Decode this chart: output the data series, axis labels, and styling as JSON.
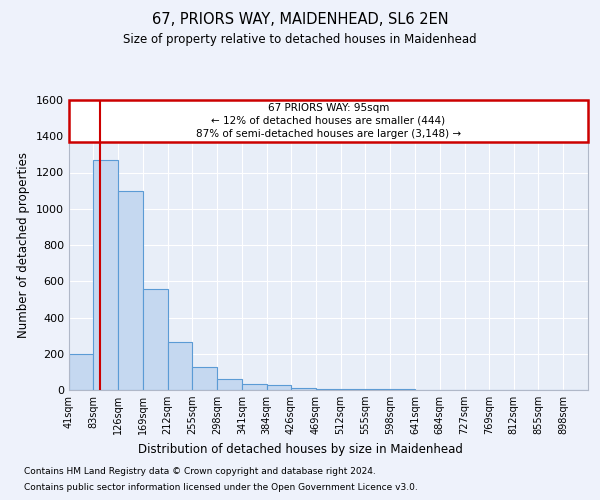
{
  "title1": "67, PRIORS WAY, MAIDENHEAD, SL6 2EN",
  "title2": "Size of property relative to detached houses in Maidenhead",
  "xlabel": "Distribution of detached houses by size in Maidenhead",
  "ylabel": "Number of detached properties",
  "footnote1": "Contains HM Land Registry data © Crown copyright and database right 2024.",
  "footnote2": "Contains public sector information licensed under the Open Government Licence v3.0.",
  "bin_labels": [
    "41sqm",
    "83sqm",
    "126sqm",
    "169sqm",
    "212sqm",
    "255sqm",
    "298sqm",
    "341sqm",
    "384sqm",
    "426sqm",
    "469sqm",
    "512sqm",
    "555sqm",
    "598sqm",
    "641sqm",
    "684sqm",
    "727sqm",
    "769sqm",
    "812sqm",
    "855sqm",
    "898sqm"
  ],
  "bar_values": [
    200,
    1270,
    1100,
    560,
    265,
    125,
    60,
    35,
    25,
    10,
    8,
    5,
    3,
    3,
    2,
    2,
    1,
    1,
    1,
    1,
    0
  ],
  "bar_color": "#c5d8f0",
  "bar_edge_color": "#5b9bd5",
  "property_line_x": 95,
  "bin_edges": [
    41,
    83,
    126,
    169,
    212,
    255,
    298,
    341,
    384,
    426,
    469,
    512,
    555,
    598,
    641,
    684,
    727,
    769,
    812,
    855,
    898,
    941
  ],
  "annotation_text": "67 PRIORS WAY: 95sqm\n← 12% of detached houses are smaller (444)\n87% of semi-detached houses are larger (3,148) →",
  "annotation_box_color": "#cc0000",
  "ylim": [
    0,
    1600
  ],
  "yticks": [
    0,
    200,
    400,
    600,
    800,
    1000,
    1200,
    1400,
    1600
  ],
  "background_color": "#eef2fb",
  "grid_color": "#d0d8e8",
  "plot_bg_color": "#e8eef8"
}
